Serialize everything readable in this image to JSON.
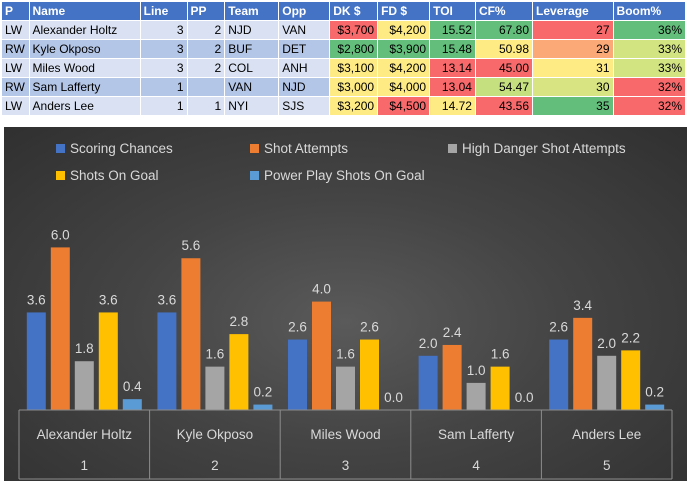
{
  "table": {
    "headers": [
      "P",
      "Name",
      "Line",
      "PP",
      "Team",
      "Opp",
      "DK $",
      "FD $",
      "TOI",
      "CF%",
      "Leverage",
      "Boom%"
    ],
    "rows": [
      {
        "pos": "LW",
        "name": "Alexander Holtz",
        "line": "3",
        "pp": "2",
        "team": "NJD",
        "opp": "VAN",
        "dk": "$3,700",
        "fd": "$4,200",
        "toi": "15.52",
        "cf": "67.80",
        "leverage": "27",
        "boom": "36%"
      },
      {
        "pos": "RW",
        "name": "Kyle Okposo",
        "line": "3",
        "pp": "2",
        "team": "BUF",
        "opp": "DET",
        "dk": "$2,800",
        "fd": "$3,900",
        "toi": "15.48",
        "cf": "50.98",
        "leverage": "29",
        "boom": "33%"
      },
      {
        "pos": "LW",
        "name": "Miles Wood",
        "line": "3",
        "pp": "2",
        "team": "COL",
        "opp": "ANH",
        "dk": "$3,100",
        "fd": "$4,200",
        "toi": "13.14",
        "cf": "45.00",
        "leverage": "31",
        "boom": "33%"
      },
      {
        "pos": "RW",
        "name": "Sam Lafferty",
        "line": "1",
        "pp": "",
        "team": "VAN",
        "opp": "NJD",
        "dk": "$3,000",
        "fd": "$4,000",
        "toi": "13.04",
        "cf": "54.47",
        "leverage": "30",
        "boom": "32%"
      },
      {
        "pos": "LW",
        "name": "Anders Lee",
        "line": "1",
        "pp": "1",
        "team": "NYI",
        "opp": "SJS",
        "dk": "$3,200",
        "fd": "$4,500",
        "toi": "14.72",
        "cf": "43.56",
        "leverage": "35",
        "boom": "32%"
      }
    ],
    "cell_colors": {
      "dk": [
        "#f8696b",
        "#63be7b",
        "#ffeb84",
        "#ffeb84",
        "#ffeb84"
      ],
      "fd": [
        "#ffeb84",
        "#63be7b",
        "#ffeb84",
        "#ffeb84",
        "#f8696b"
      ],
      "toi": [
        "#63be7b",
        "#63be7b",
        "#f8696b",
        "#f8696b",
        "#ffeb84"
      ],
      "cf": [
        "#63be7b",
        "#ffeb84",
        "#f8696b",
        "#c5e07f",
        "#f8696b"
      ],
      "leverage": [
        "#f8696b",
        "#fba977",
        "#ffeb84",
        "#d8e482",
        "#63be7b"
      ],
      "boom": [
        "#63be7b",
        "#d2e381",
        "#d2e381",
        "#f8696b",
        "#f8696b"
      ]
    }
  },
  "chart_data": {
    "type": "bar",
    "categories": [
      "Alexander Holtz",
      "Kyle Okposo",
      "Miles Wood",
      "Sam Lafferty",
      "Anders Lee"
    ],
    "category_indices": [
      "1",
      "2",
      "3",
      "4",
      "5"
    ],
    "series": [
      {
        "name": "Scoring Chances",
        "color": "#4472c4",
        "values": [
          3.6,
          3.6,
          2.6,
          2.0,
          2.6
        ]
      },
      {
        "name": "Shot Attempts",
        "color": "#ed7d31",
        "values": [
          6.0,
          5.6,
          4.0,
          2.4,
          3.4
        ]
      },
      {
        "name": "High Danger Shot Attempts",
        "color": "#a5a5a5",
        "values": [
          1.8,
          1.6,
          1.6,
          1.0,
          2.0
        ]
      },
      {
        "name": "Shots On Goal",
        "color": "#ffc000",
        "values": [
          3.6,
          2.8,
          2.6,
          1.6,
          2.2
        ]
      },
      {
        "name": "Power Play Shots On Goal",
        "color": "#5b9bd5",
        "values": [
          0.4,
          0.2,
          0.0,
          0.0,
          0.2
        ]
      }
    ],
    "value_labels": [
      [
        "3.6",
        "3.6",
        "2.6",
        "2.0",
        "2.6"
      ],
      [
        "6.0",
        "5.6",
        "4.0",
        "2.4",
        "3.4"
      ],
      [
        "1.8",
        "1.6",
        "1.6",
        "1.0",
        "2.0"
      ],
      [
        "3.6",
        "2.8",
        "2.6",
        "1.6",
        "2.2"
      ],
      [
        "0.4",
        "0.2",
        "0.0",
        "0.0",
        "0.2"
      ]
    ],
    "ylim": [
      0,
      6.9
    ],
    "grid": false,
    "legend_position": "top",
    "title": "",
    "xlabel": "",
    "ylabel": ""
  }
}
